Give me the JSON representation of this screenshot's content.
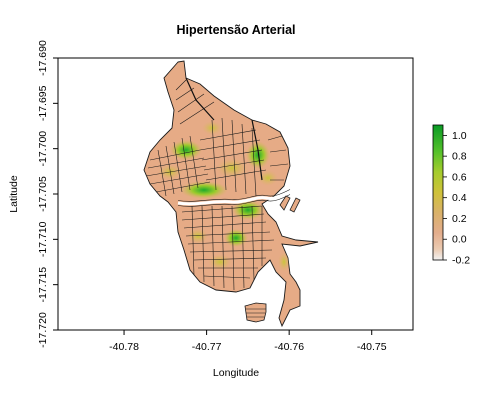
{
  "title": "Hipertensão Arterial",
  "xlabel": "Longitude",
  "ylabel": "Latitude",
  "x_axis": {
    "range": [
      -40.788,
      -40.745
    ],
    "ticks": [
      -40.78,
      -40.77,
      -40.76,
      -40.75
    ],
    "tick_labels": [
      "-40.78",
      "-40.77",
      "-40.76",
      "-40.75"
    ]
  },
  "y_axis": {
    "range": [
      -17.72,
      -17.69
    ],
    "ticks": [
      -17.69,
      -17.695,
      -17.7,
      -17.705,
      -17.71,
      -17.715,
      -17.72
    ],
    "tick_labels": [
      "-17.690",
      "-17.695",
      "-17.700",
      "-17.705",
      "-17.710",
      "-17.715",
      "-17.720"
    ]
  },
  "legend": {
    "position": "right",
    "range": [
      -0.2,
      1.1
    ],
    "ticks": [
      1.0,
      0.8,
      0.6,
      0.4,
      0.2,
      0.0,
      -0.2
    ],
    "tick_labels": [
      "1.0",
      "0.8",
      "0.6",
      "0.4",
      "0.2",
      "0.0",
      "-0.2"
    ],
    "colors": [
      "#f2f2f2",
      "#e8c4a6",
      "#e2a983",
      "#d6b45e",
      "#cfc13a",
      "#9ccb2c",
      "#4cbf2a",
      "#0a9b25"
    ]
  },
  "colors": {
    "base_fill": "#e6ab86",
    "border": "#1a1a1a",
    "river": "#ffffff"
  }
}
